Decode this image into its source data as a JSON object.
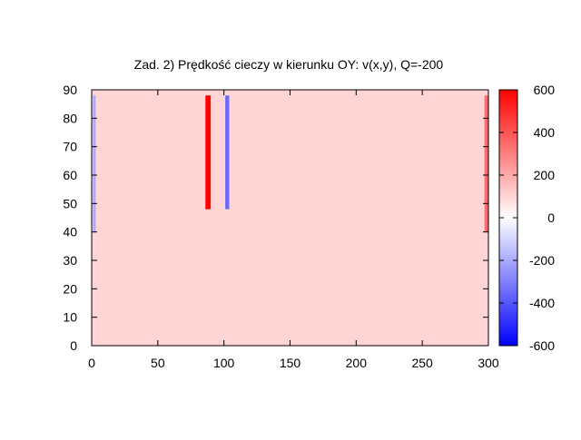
{
  "chart_data": {
    "type": "heatmap",
    "title": "Zad. 2) Prędkość cieczy w kierunku OY: v(x,y), Q=-200",
    "xlabel": "",
    "ylabel": "",
    "xlim": [
      0,
      300
    ],
    "ylim": [
      0,
      90
    ],
    "x_ticks": [
      "0",
      "50",
      "100",
      "150",
      "200",
      "250",
      "300"
    ],
    "y_ticks": [
      "0",
      "10",
      "20",
      "30",
      "40",
      "50",
      "60",
      "70",
      "80",
      "90"
    ],
    "colorbar": {
      "range": [
        -600,
        600
      ],
      "ticks": [
        "-600",
        "-400",
        "-200",
        "0",
        "200",
        "400",
        "600"
      ],
      "colors": {
        "min": "#0000ff",
        "zero": "#ffffff",
        "max": "#ff0000"
      }
    },
    "background_value": 100,
    "features": [
      {
        "x_range": [
          86,
          90
        ],
        "y_range": [
          48,
          88
        ],
        "value": 600
      },
      {
        "x_range": [
          101,
          104
        ],
        "y_range": [
          48,
          88
        ],
        "value": -350
      },
      {
        "x_range": [
          1,
          3
        ],
        "y_range": [
          40,
          88
        ],
        "value": -200
      },
      {
        "x_range": [
          297,
          300
        ],
        "y_range": [
          40,
          88
        ],
        "value": 350
      }
    ]
  }
}
